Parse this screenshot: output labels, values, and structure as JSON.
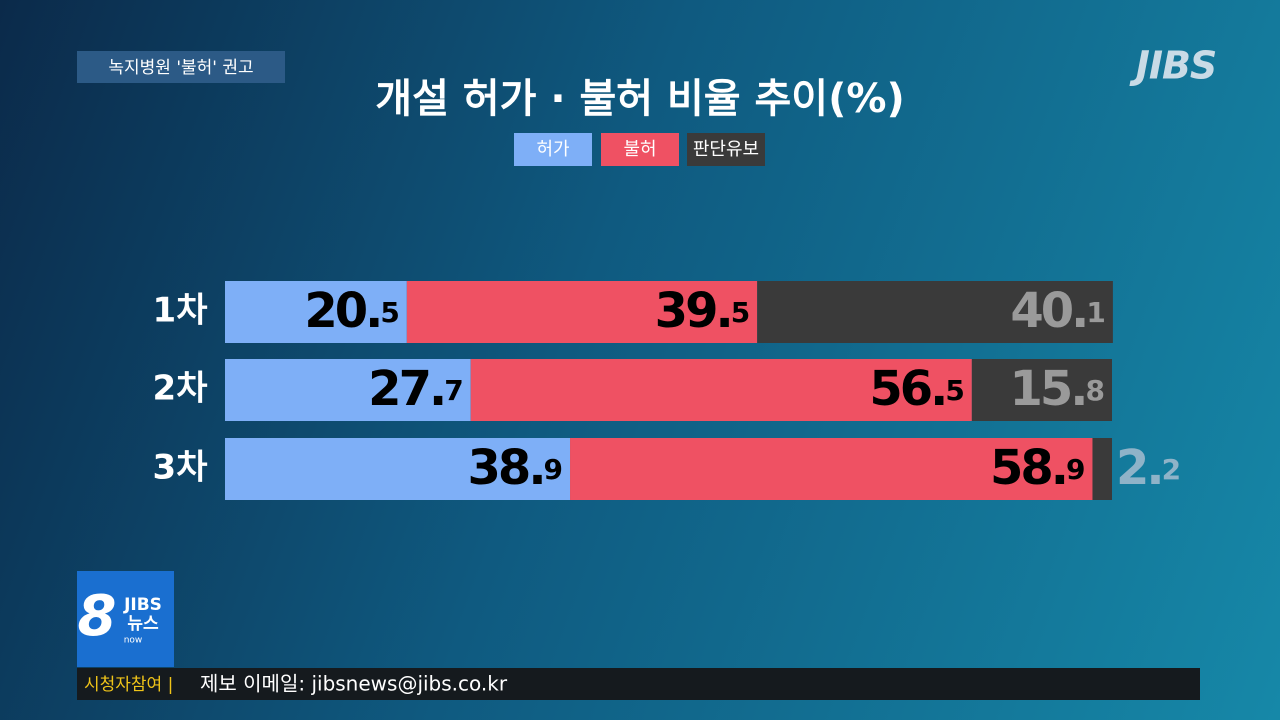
{
  "chart_data": {
    "type": "stacked-barh",
    "title": "개설 허가 · 불허 비율 추이(%)",
    "categories": [
      "1차",
      "2차",
      "3차"
    ],
    "series": [
      {
        "name": "허가",
        "color": "#7eaff7",
        "label_color": "#000000",
        "values": [
          20.5,
          27.7,
          38.9
        ]
      },
      {
        "name": "불허",
        "color": "#ef5163",
        "label_color": "#000000",
        "values": [
          39.5,
          56.5,
          58.9
        ]
      },
      {
        "name": "판단유보",
        "color": "#3a3a3a",
        "label_color": "#9a9a9a",
        "values": [
          40.1,
          15.8,
          2.2
        ]
      }
    ],
    "xlim": [
      0,
      100
    ]
  },
  "overlay": {
    "tag": "녹지병원 '불허' 권고",
    "logo": "JIBS",
    "news_logo_number": "8",
    "news_logo_brand": "JIBS",
    "news_logo_name": "뉴스",
    "news_logo_sub": "now",
    "ticker_label": "시청자참여 |",
    "ticker_text": "제보 이메일: jibsnews@jibs.co.kr"
  }
}
